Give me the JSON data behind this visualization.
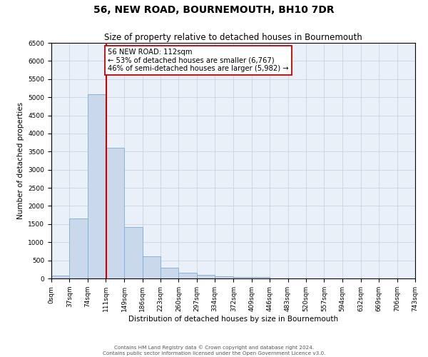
{
  "title": "56, NEW ROAD, BOURNEMOUTH, BH10 7DR",
  "subtitle": "Size of property relative to detached houses in Bournemouth",
  "xlabel": "Distribution of detached houses by size in Bournemouth",
  "ylabel": "Number of detached properties",
  "bar_edges": [
    0,
    37,
    74,
    111,
    149,
    186,
    223,
    260,
    297,
    334,
    372,
    409,
    446,
    483,
    520,
    557,
    594,
    632,
    669,
    706,
    743
  ],
  "bar_heights": [
    75,
    1650,
    5075,
    3600,
    1420,
    610,
    300,
    150,
    100,
    55,
    45,
    35,
    0,
    0,
    0,
    0,
    0,
    0,
    0,
    0
  ],
  "bar_color": "#c9d9eb",
  "bar_edgecolor": "#7aadd4",
  "vline_x": 112,
  "vline_color": "#cc0000",
  "annotation_text": "56 NEW ROAD: 112sqm\n← 53% of detached houses are smaller (6,767)\n46% of semi-detached houses are larger (5,982) →",
  "annotation_box_color": "#ffffff",
  "annotation_box_edgecolor": "#cc0000",
  "ylim": [
    0,
    6500
  ],
  "yticks": [
    0,
    500,
    1000,
    1500,
    2000,
    2500,
    3000,
    3500,
    4000,
    4500,
    5000,
    5500,
    6000,
    6500
  ],
  "xtick_labels": [
    "0sqm",
    "37sqm",
    "74sqm",
    "111sqm",
    "149sqm",
    "186sqm",
    "223sqm",
    "260sqm",
    "297sqm",
    "334sqm",
    "372sqm",
    "409sqm",
    "446sqm",
    "483sqm",
    "520sqm",
    "557sqm",
    "594sqm",
    "632sqm",
    "669sqm",
    "706sqm",
    "743sqm"
  ],
  "footer_line1": "Contains HM Land Registry data © Crown copyright and database right 2024.",
  "footer_line2": "Contains public sector information licensed under the Open Government Licence v3.0.",
  "bg_color": "#ffffff",
  "plot_bg_color": "#eaf0f8",
  "title_fontsize": 10,
  "subtitle_fontsize": 8.5,
  "axis_label_fontsize": 7.5,
  "tick_fontsize": 6.5,
  "footer_fontsize": 5.2
}
